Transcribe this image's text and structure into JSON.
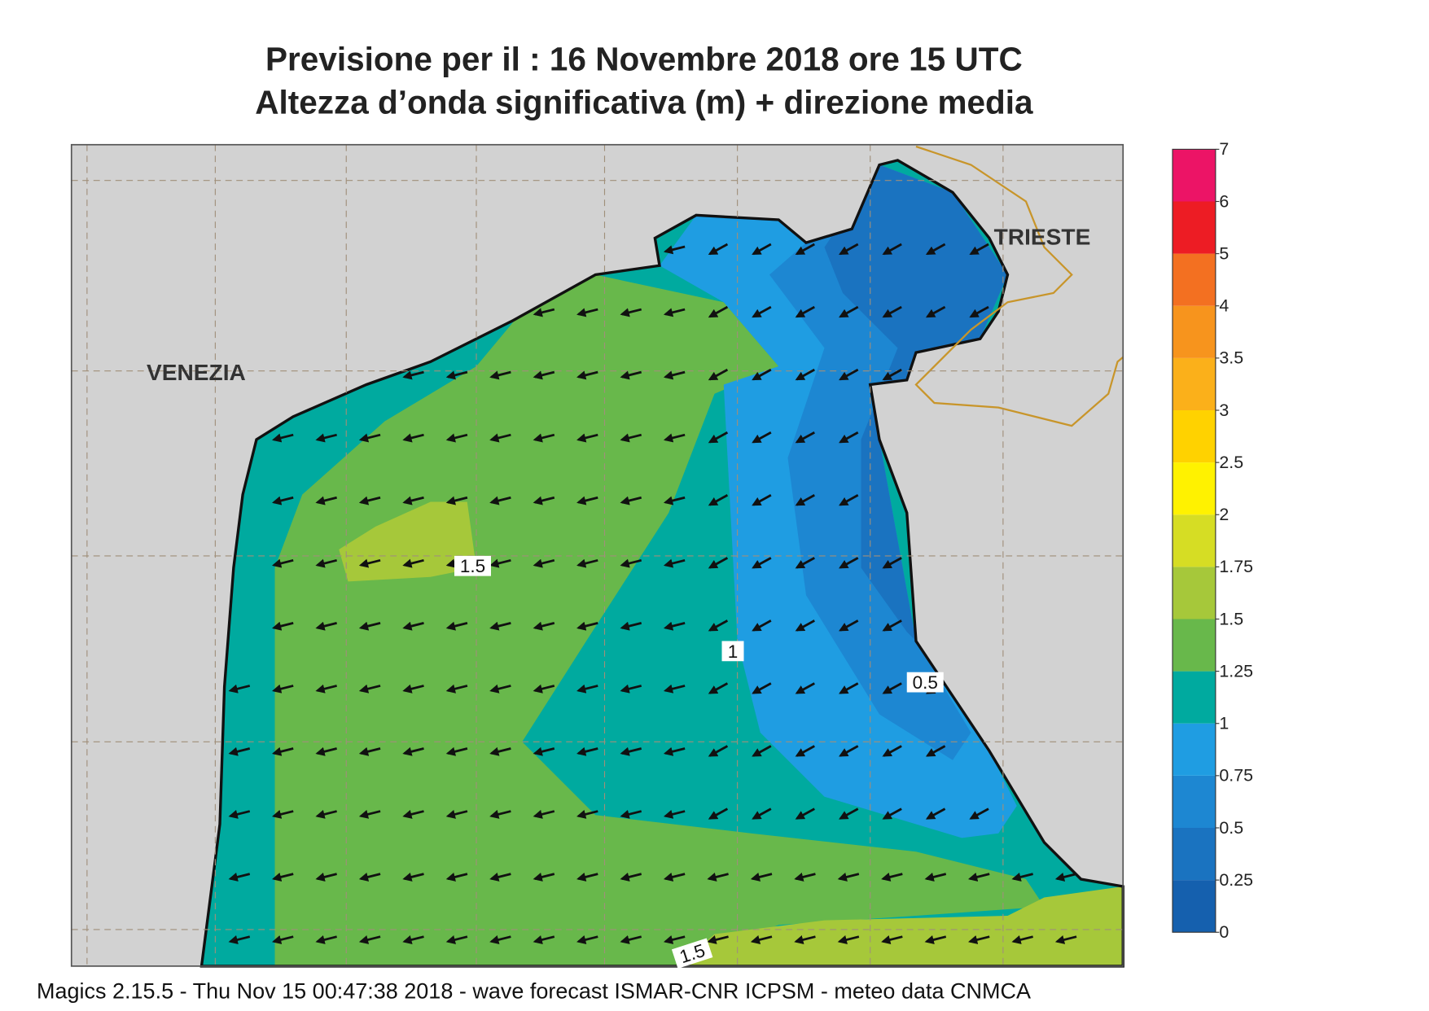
{
  "title": [
    "Previsione per il  :  16 Novembre  2018   ore 15 UTC",
    "Altezza d’onda significativa (m) + direzione media"
  ],
  "places": [
    "VENEZIA",
    "TRIESTE"
  ],
  "contour_labels": [
    "1.5",
    "1",
    "0.5",
    "1.5"
  ],
  "colorbar": {
    "levels": [
      0,
      0.25,
      0.5,
      0.75,
      1,
      1.25,
      1.5,
      1.75,
      2,
      2.5,
      3,
      3.5,
      4,
      5,
      6,
      7
    ],
    "colors": [
      "#1560ae",
      "#1a73c0",
      "#1d87d2",
      "#1f9de2",
      "#00aa9f",
      "#68b84b",
      "#a6c83a",
      "#d6dd24",
      "#fff200",
      "#ffd200",
      "#fbb01a",
      "#f7941d",
      "#f37021",
      "#ed1c24",
      "#ec1466"
    ]
  },
  "footer": "Magics 2.15.5 - Thu Nov 15 00:47:38 2018 - wave forecast  ISMAR-CNR  ICPSM - meteo data   CNMCA"
}
